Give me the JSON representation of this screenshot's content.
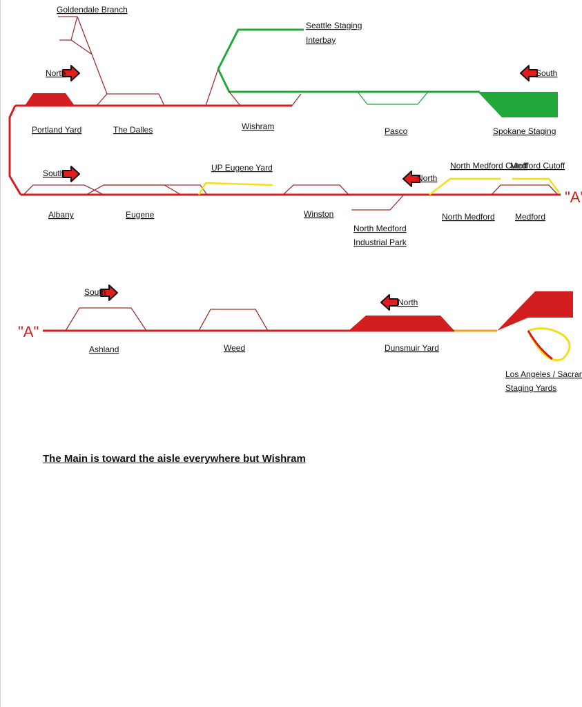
{
  "colors": {
    "main_red": "#d21e1e",
    "branch_maroon": "#9b3030",
    "staging_green": "#22a83a",
    "cutoff_yellow": "#f0e01a",
    "arrow_red": "#e01e1e",
    "text": "#111111"
  },
  "labels": {
    "goldendale_branch": "Goldendale Branch",
    "north_1": "North",
    "portland_yard": "Portland Yard",
    "the_dalles": "The Dalles",
    "wishram": "Wishram",
    "seattle_staging_1": "Seattle Staging",
    "seattle_staging_2": "Interbay",
    "pasco": "Pasco",
    "south_1": "South",
    "spokane_staging": "Spokane Staging",
    "south_2": "South",
    "up_eugene_yard": "UP Eugene Yard",
    "north_2": "North",
    "north_medford_cutoff": "North Medford Cutoff",
    "medford_cutoff": "Medford Cutoff",
    "a_marker_1": "\"A\"",
    "albany": "Albany",
    "eugene": "Eugene",
    "winston": "Winston",
    "north_medford_industrial_1": "North Medford",
    "north_medford_industrial_2": "Industrial Park",
    "north_medford": "North Medford",
    "medford": "Medford",
    "south_3": "South",
    "north_3": "North",
    "a_marker_2": "\"A\"",
    "ashland": "Ashland",
    "weed": "Weed",
    "dunsmuir_yard": "Dunsmuir Yard",
    "la_sac_1": "Los Angeles / Sacramento",
    "la_sac_2": "Staging Yards"
  },
  "footnote": "The Main is toward the aisle everywhere but Wishram",
  "arrows": [
    {
      "name": "north-arrow-icon",
      "direction": "right"
    },
    {
      "name": "south-arrow-icon",
      "direction": "left"
    },
    {
      "name": "south-arrow-icon",
      "direction": "right"
    },
    {
      "name": "north-arrow-icon",
      "direction": "left"
    },
    {
      "name": "south-arrow-icon",
      "direction": "right"
    },
    {
      "name": "north-arrow-icon",
      "direction": "left"
    }
  ]
}
